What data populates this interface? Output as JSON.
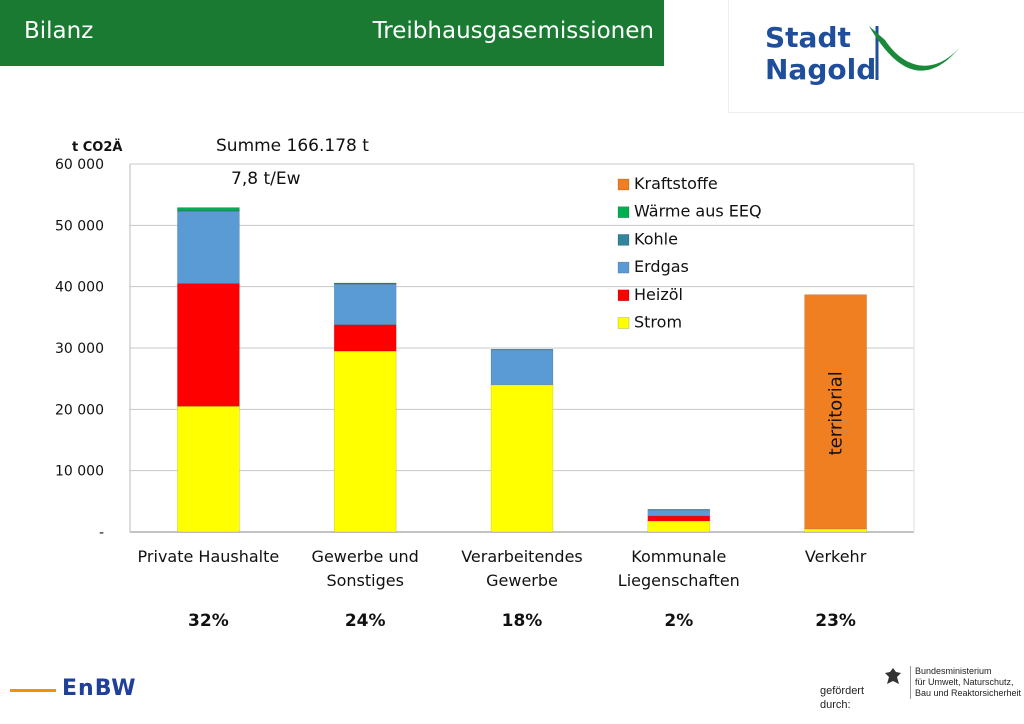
{
  "header": {
    "left": "Bilanz",
    "right": "Treibhausgasemissionen"
  },
  "logo": {
    "line1": "Stadt",
    "line2": "Nagold"
  },
  "chart_data": {
    "type": "bar",
    "stacked": true,
    "ylabel": "t CO2Ä",
    "annotation_sum": "Summe 166.178 t",
    "annotation_per_capita": "7,8 t/Ew",
    "ylim": [
      0,
      60000
    ],
    "y_ticks": [
      "-",
      "10 000",
      "20 000",
      "30 000",
      "40 000",
      "50 000",
      "60 000"
    ],
    "categories": [
      "Private Haushalte",
      "Gewerbe und Sonstiges",
      "Verarbeitendes Gewerbe",
      "Kommunale Liegenschaften",
      "Verkehr"
    ],
    "category_lines": [
      [
        "Private Haushalte"
      ],
      [
        "Gewerbe und",
        "Sonstiges"
      ],
      [
        "Verarbeitendes",
        "Gewerbe"
      ],
      [
        "Kommunale",
        "Liegenschaften"
      ],
      [
        "Verkehr"
      ]
    ],
    "shares": [
      "32%",
      "24%",
      "18%",
      "2%",
      "23%"
    ],
    "series": [
      {
        "name": "Strom",
        "color": "#ffff00",
        "values": [
          20500,
          29500,
          24000,
          1800,
          500
        ]
      },
      {
        "name": "Heizöl",
        "color": "#ff0000",
        "values": [
          20000,
          4300,
          0,
          800,
          0
        ]
      },
      {
        "name": "Erdgas",
        "color": "#5b9bd5",
        "values": [
          11800,
          6600,
          5700,
          1000,
          0
        ]
      },
      {
        "name": "Kohle",
        "color": "#31859c",
        "values": [
          100,
          100,
          100,
          100,
          0
        ]
      },
      {
        "name": "Wärme aus EEQ",
        "color": "#00b050",
        "values": [
          500,
          100,
          0,
          0,
          0
        ]
      },
      {
        "name": "Kraftstoffe",
        "color": "#f07f21",
        "values": [
          0,
          0,
          0,
          0,
          38200
        ]
      }
    ],
    "legend_order": [
      "Kraftstoffe",
      "Wärme aus EEQ",
      "Kohle",
      "Erdgas",
      "Heizöl",
      "Strom"
    ],
    "legend_position": "top-right",
    "grid": true,
    "bar_annotation": {
      "category": "Verkehr",
      "text": "territorial"
    }
  },
  "footer": {
    "brand": "EnBW",
    "funded_line1": "gefördert",
    "funded_line2": "durch:",
    "ministry_line1": "Bundesministerium",
    "ministry_line2": "für Umwelt, Naturschutz,",
    "ministry_line3": "Bau und Reaktorsicherheit"
  }
}
